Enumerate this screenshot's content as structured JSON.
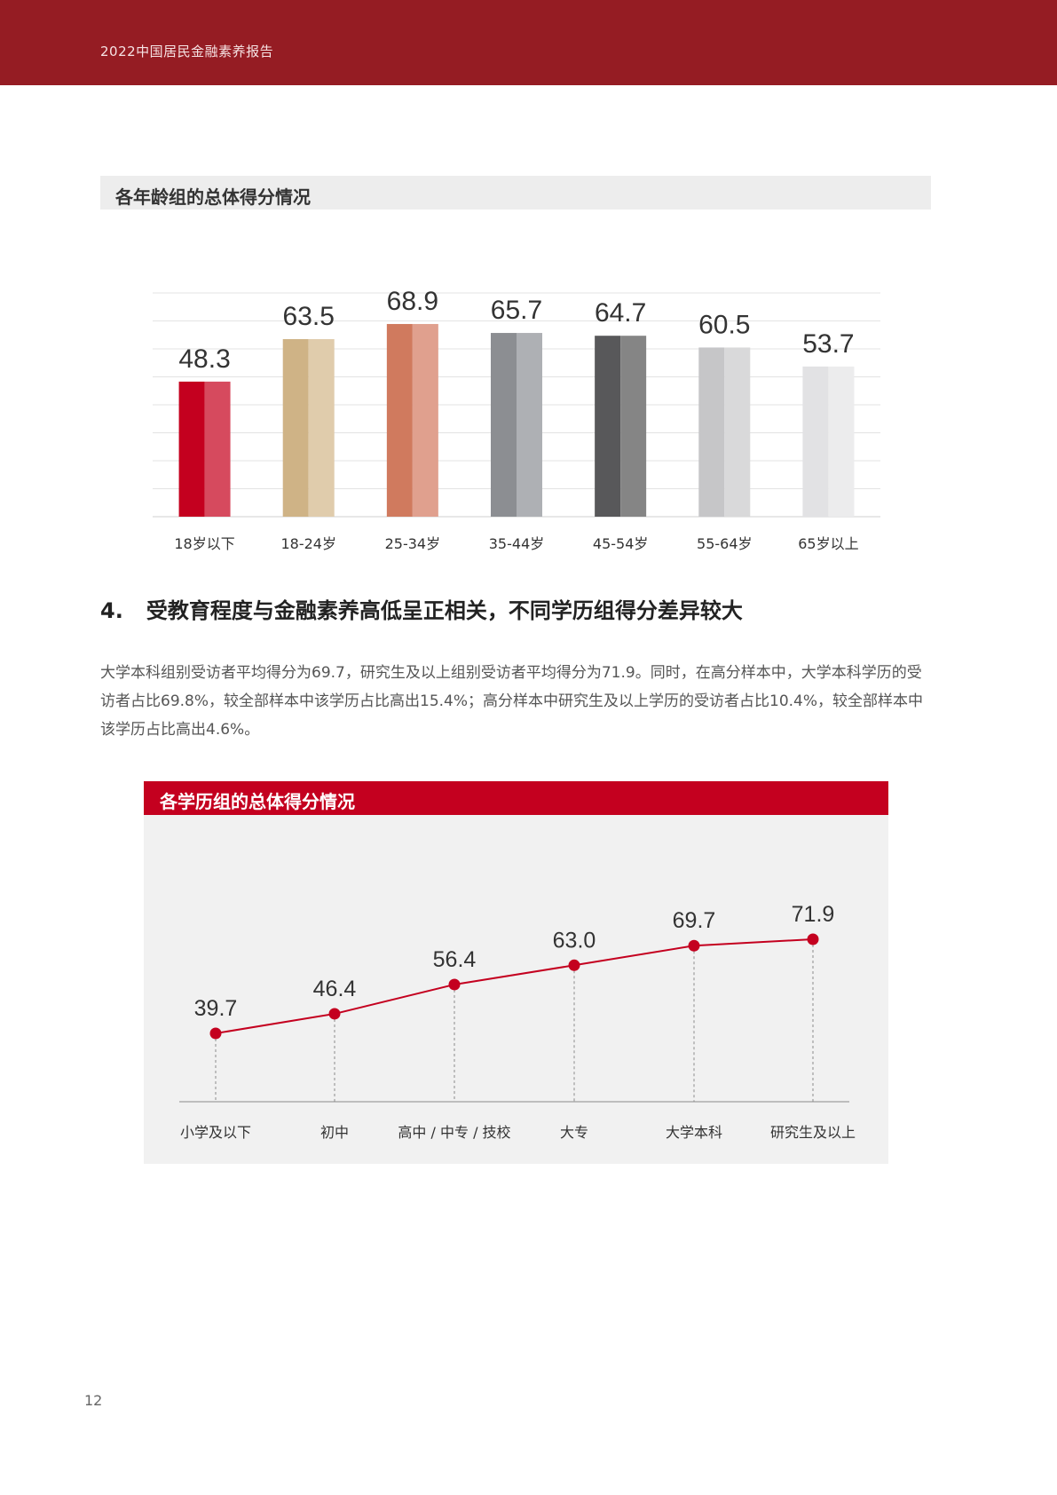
{
  "header": {
    "title": "2022中国居民金融素养报告"
  },
  "age_section": {
    "title": "各年龄组的总体得分情况"
  },
  "heading": {
    "number": "4.",
    "text": "受教育程度与金融素养高低呈正相关，不同学历组得分差异较大"
  },
  "paragraph": "大学本科组别受访者平均得分为69.7，研究生及以上组别受访者平均得分为71.9。同时，在高分样本中，大学本科学历的受访者占比69.8%，较全部样本中该学历占比高出15.4%；高分样本中研究生及以上学历的受访者占比10.4%，较全部样本中该学历占比高出4.6%。",
  "edu_section": {
    "title": "各学历组的总体得分情况"
  },
  "page_number": "12",
  "chart_data": [
    {
      "type": "bar",
      "title": "各年龄组的总体得分情况",
      "categories": [
        "18岁以下",
        "18-24岁",
        "25-34岁",
        "35-44岁",
        "45-54岁",
        "55-64岁",
        "65岁以上"
      ],
      "values": [
        48.3,
        63.5,
        68.9,
        65.7,
        64.7,
        60.5,
        53.7
      ],
      "value_labels": [
        "48.3",
        "63.5",
        "68.9",
        "65.7",
        "64.7",
        "60.5",
        "53.7"
      ],
      "colors": [
        [
          "#c4001f",
          "#d64a5e"
        ],
        [
          "#cfb386",
          "#e0ccac"
        ],
        [
          "#d07a5e",
          "#e0a08e"
        ],
        [
          "#8c8e92",
          "#aeb0b4"
        ],
        [
          "#58585a",
          "#858585"
        ],
        [
          "#c6c6c8",
          "#d9d9da"
        ],
        [
          "#e2e2e4",
          "#ececed"
        ]
      ],
      "ylim": [
        0,
        80
      ],
      "grid": true
    },
    {
      "type": "line",
      "title": "各学历组的总体得分情况",
      "categories": [
        "小学及以下",
        "初中",
        "高中 / 中专 / 技校",
        "大专",
        "大学本科",
        "研究生及以上"
      ],
      "values": [
        39.7,
        46.4,
        56.4,
        63.0,
        69.7,
        71.9
      ],
      "value_labels": [
        "39.7",
        "46.4",
        "56.4",
        "63.0",
        "69.7",
        "71.9"
      ],
      "line_color": "#c4001f",
      "grid": false
    }
  ]
}
